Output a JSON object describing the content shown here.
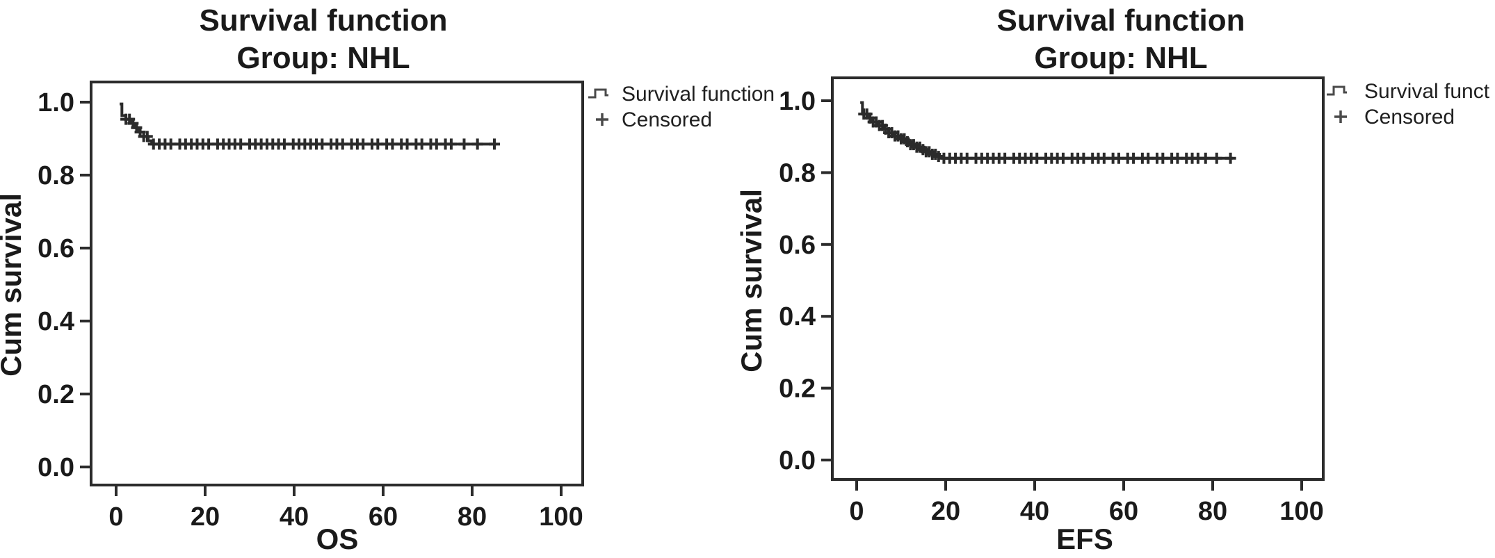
{
  "figure": {
    "background_color": "#ffffff",
    "ink_color": "#2b2b2b",
    "text_color": "#1a1a1a",
    "legend_symbol_color": "#4a4a4a"
  },
  "chart_data": [
    {
      "type": "line",
      "subtype": "kaplan-meier-step",
      "title": "Survival function",
      "subtitle": "Group: NHL",
      "xlabel": "OS",
      "ylabel": "Cum survival",
      "xlim": [
        0,
        105
      ],
      "ylim": [
        0,
        1.05
      ],
      "xticks": [
        0,
        20,
        40,
        60,
        80,
        100
      ],
      "yticks": [
        "0.0",
        "0.2",
        "0.4",
        "0.6",
        "0.8",
        "1.0"
      ],
      "grid": false,
      "legend": {
        "position": "outside-top-right",
        "entries": [
          {
            "symbol": "step-line",
            "label": "Survival function"
          },
          {
            "symbol": "plus",
            "label": "Censored"
          }
        ]
      },
      "series": [
        {
          "name": "Survival function",
          "steps": [
            [
              0.8,
              0.995
            ],
            [
              1.3,
              0.963
            ],
            [
              2.2,
              0.953
            ],
            [
              3.2,
              0.942
            ],
            [
              4.2,
              0.93
            ],
            [
              5.2,
              0.918
            ],
            [
              6.2,
              0.906
            ],
            [
              7.2,
              0.894
            ],
            [
              8.0,
              0.885
            ]
          ],
          "end_x": 85.5,
          "plateau_value": 0.885
        }
      ],
      "censored_x": [
        2.2,
        3.0,
        3.8,
        4.6,
        5.4,
        6.2,
        7.0,
        8.4,
        9.7,
        11.0,
        12.3,
        14.3,
        15.6,
        16.9,
        18.2,
        19.5,
        20.8,
        22.8,
        24.1,
        25.4,
        26.7,
        28.0,
        30.0,
        31.3,
        32.6,
        33.9,
        35.2,
        36.5,
        37.8,
        39.8,
        41.1,
        42.4,
        43.7,
        45.0,
        46.3,
        48.3,
        49.6,
        50.9,
        52.9,
        54.2,
        55.5,
        57.5,
        58.8,
        60.8,
        62.1,
        64.1,
        65.4,
        67.4,
        68.7,
        70.7,
        72.0,
        74.0,
        75.3,
        78.2,
        81.2,
        85.0
      ]
    },
    {
      "type": "line",
      "subtype": "kaplan-meier-step",
      "title": "Survival function",
      "subtitle": "Group: NHL",
      "xlabel": "EFS",
      "ylabel": "Cum survival",
      "xlim": [
        0,
        105
      ],
      "ylim": [
        0,
        1.05
      ],
      "xticks": [
        0,
        20,
        40,
        60,
        80,
        100
      ],
      "yticks": [
        "0.0",
        "0.2",
        "0.4",
        "0.6",
        "0.8",
        "1.0"
      ],
      "grid": false,
      "legend": {
        "position": "outside-top-right",
        "entries": [
          {
            "symbol": "step-line",
            "label": "Survival funct"
          },
          {
            "symbol": "plus",
            "label": "Censored"
          }
        ]
      },
      "series": [
        {
          "name": "Survival function",
          "steps": [
            [
              0.8,
              0.995
            ],
            [
              1.3,
              0.963
            ],
            [
              2.4,
              0.952
            ],
            [
              3.6,
              0.941
            ],
            [
              4.8,
              0.931
            ],
            [
              6.0,
              0.921
            ],
            [
              7.2,
              0.911
            ],
            [
              8.4,
              0.902
            ],
            [
              9.6,
              0.894
            ],
            [
              10.8,
              0.886
            ],
            [
              12.0,
              0.878
            ],
            [
              13.2,
              0.871
            ],
            [
              14.4,
              0.864
            ],
            [
              15.6,
              0.858
            ],
            [
              16.8,
              0.851
            ],
            [
              18.0,
              0.845
            ],
            [
              19.2,
              0.84
            ]
          ],
          "end_x": 84.5,
          "plateau_value": 0.84
        }
      ],
      "censored_x": [
        1.6,
        2.3,
        3.0,
        3.7,
        4.4,
        5.1,
        5.8,
        6.5,
        7.2,
        7.9,
        8.6,
        9.3,
        10.0,
        10.7,
        11.4,
        12.1,
        12.8,
        13.5,
        14.2,
        14.9,
        15.6,
        16.3,
        17.0,
        17.7,
        18.4,
        19.6,
        20.9,
        22.2,
        23.5,
        24.8,
        26.8,
        28.1,
        29.4,
        30.7,
        32.0,
        33.3,
        35.3,
        36.6,
        37.9,
        39.2,
        40.5,
        42.5,
        43.8,
        45.1,
        46.4,
        48.4,
        49.7,
        51.0,
        53.0,
        54.3,
        55.6,
        57.6,
        58.9,
        60.9,
        62.2,
        64.2,
        65.5,
        67.5,
        68.8,
        70.8,
        72.1,
        74.1,
        75.4,
        76.7,
        78.4,
        80.9,
        84.0
      ]
    }
  ]
}
